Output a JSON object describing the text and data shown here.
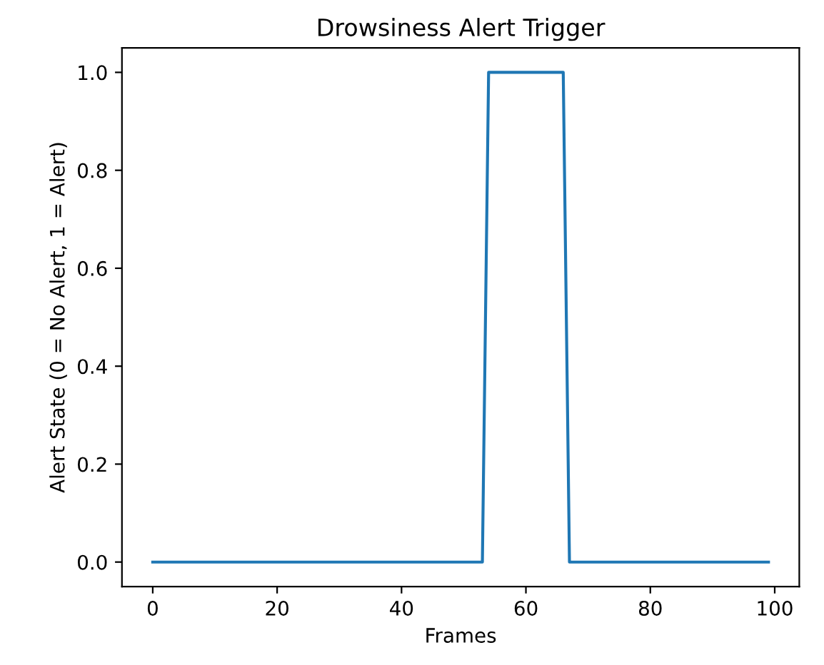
{
  "chart_data": {
    "type": "line",
    "title": "Drowsiness Alert Trigger",
    "xlabel": "Frames",
    "ylabel": "Alert State (0 = No Alert, 1 = Alert)",
    "x": [
      0,
      53,
      54,
      66,
      67,
      99
    ],
    "series": [
      {
        "color": "#1f77b4",
        "values": [
          0,
          0,
          1,
          1,
          0,
          0
        ]
      }
    ],
    "xlim": [
      -4.95,
      103.95
    ],
    "xticks": [
      0,
      20,
      40,
      60,
      80,
      100
    ],
    "ylim": [
      -0.05,
      1.05
    ],
    "yticks": [
      {
        "value": 0,
        "label": "0.0"
      },
      {
        "value": 0.2,
        "label": "0.2"
      },
      {
        "value": 0.4,
        "label": "0.4"
      },
      {
        "value": 0.6,
        "label": "0.6"
      },
      {
        "value": 0.8,
        "label": "0.8"
      },
      {
        "value": 1,
        "label": "1.0"
      }
    ],
    "grid": false,
    "marker": "none",
    "line_style": "solid"
  }
}
